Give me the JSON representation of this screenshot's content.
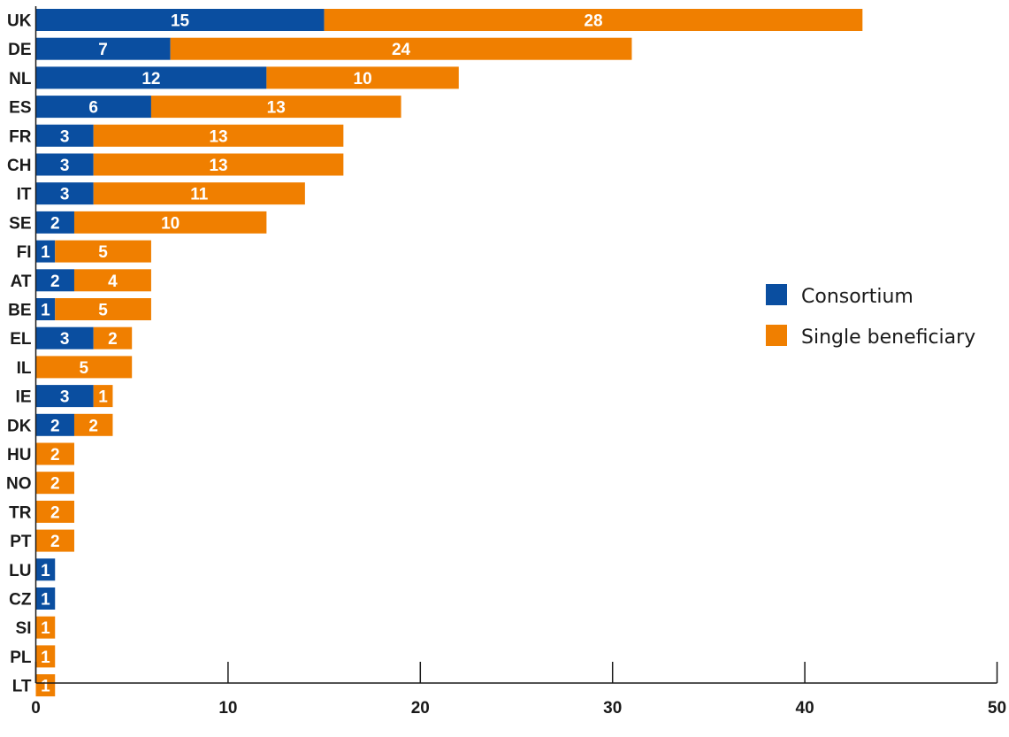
{
  "colors": {
    "consortium": "#0a4ea0",
    "single_beneficiary": "#f07f00",
    "axis": "#1a1a1a",
    "text": "#1a1a1a",
    "bar_text": "#ffffff"
  },
  "chart_data": {
    "type": "bar",
    "orientation": "horizontal",
    "stacked": true,
    "categories": [
      "UK",
      "DE",
      "NL",
      "ES",
      "FR",
      "CH",
      "IT",
      "SE",
      "FI",
      "AT",
      "BE",
      "EL",
      "IL",
      "IE",
      "DK",
      "HU",
      "NO",
      "TR",
      "PT",
      "LU",
      "CZ",
      "SI",
      "PL",
      "LT"
    ],
    "series": [
      {
        "name": "Consortium",
        "color": "#0a4ea0",
        "values": [
          15,
          7,
          12,
          6,
          3,
          3,
          3,
          2,
          1,
          2,
          1,
          3,
          0,
          3,
          2,
          0,
          0,
          0,
          0,
          1,
          1,
          0,
          0,
          0
        ]
      },
      {
        "name": "Single beneficiary",
        "color": "#f07f00",
        "values": [
          28,
          24,
          10,
          13,
          13,
          13,
          11,
          10,
          5,
          4,
          5,
          2,
          5,
          1,
          2,
          2,
          2,
          2,
          2,
          0,
          0,
          1,
          1,
          1
        ]
      }
    ],
    "xlim": [
      0,
      50
    ],
    "xticks": [
      "0",
      "10",
      "20",
      "30",
      "40",
      "50"
    ],
    "title": "",
    "xlabel": "",
    "ylabel": "",
    "grid": false,
    "legend_position": "right"
  }
}
